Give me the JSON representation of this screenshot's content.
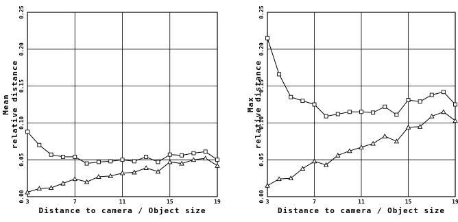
{
  "chart_data": [
    {
      "type": "line",
      "xlabel": "Distance to camera / Object size",
      "ylabel_line1": "Mean",
      "ylabel_line2": "relative distance",
      "xlim": [
        3,
        19
      ],
      "ylim": [
        0,
        0.25
      ],
      "xticks": [
        "3",
        "7",
        "11",
        "15",
        "19"
      ],
      "xtick_values": [
        3,
        7,
        11,
        15,
        19
      ],
      "yticks": [
        "0.00",
        "0.05",
        "0.10",
        "0.15",
        "0.20",
        "0.25"
      ],
      "ytick_values": [
        0,
        0.05,
        0.1,
        0.15,
        0.2,
        0.25
      ],
      "grid": true,
      "x": [
        3,
        4,
        5,
        6,
        7,
        8,
        9,
        10,
        11,
        12,
        13,
        14,
        15,
        16,
        17,
        18,
        19
      ],
      "series": [
        {
          "marker": "square",
          "values": [
            0.088,
            0.07,
            0.057,
            0.054,
            0.054,
            0.045,
            0.047,
            0.048,
            0.05,
            0.048,
            0.054,
            0.047,
            0.057,
            0.056,
            0.059,
            0.061,
            0.05
          ]
        },
        {
          "marker": "triangle",
          "values": [
            0.006,
            0.011,
            0.012,
            0.018,
            0.024,
            0.02,
            0.027,
            0.028,
            0.032,
            0.033,
            0.039,
            0.034,
            0.047,
            0.045,
            0.05,
            0.052,
            0.042
          ]
        }
      ]
    },
    {
      "type": "line",
      "xlabel": "Distance to camera / Object size",
      "ylabel_line1": "Max",
      "ylabel_line2": "relative distance",
      "xlim": [
        3,
        19
      ],
      "ylim": [
        0,
        0.25
      ],
      "xticks": [
        "3",
        "7",
        "11",
        "15",
        "19"
      ],
      "xtick_values": [
        3,
        7,
        11,
        15,
        19
      ],
      "yticks": [
        "0.00",
        "0.05",
        "0.10",
        "0.15",
        "0.20",
        "0.25"
      ],
      "ytick_values": [
        0,
        0.05,
        0.1,
        0.15,
        0.2,
        0.25
      ],
      "grid": true,
      "x": [
        3,
        4,
        5,
        6,
        7,
        8,
        9,
        10,
        11,
        12,
        13,
        14,
        15,
        16,
        17,
        18,
        19
      ],
      "series": [
        {
          "marker": "square",
          "values": [
            0.215,
            0.166,
            0.135,
            0.13,
            0.125,
            0.109,
            0.112,
            0.115,
            0.115,
            0.114,
            0.122,
            0.111,
            0.131,
            0.129,
            0.138,
            0.142,
            0.125
          ]
        },
        {
          "marker": "triangle",
          "values": [
            0.015,
            0.024,
            0.025,
            0.038,
            0.048,
            0.043,
            0.056,
            0.062,
            0.067,
            0.072,
            0.082,
            0.075,
            0.094,
            0.095,
            0.109,
            0.115,
            0.103
          ]
        }
      ]
    }
  ]
}
